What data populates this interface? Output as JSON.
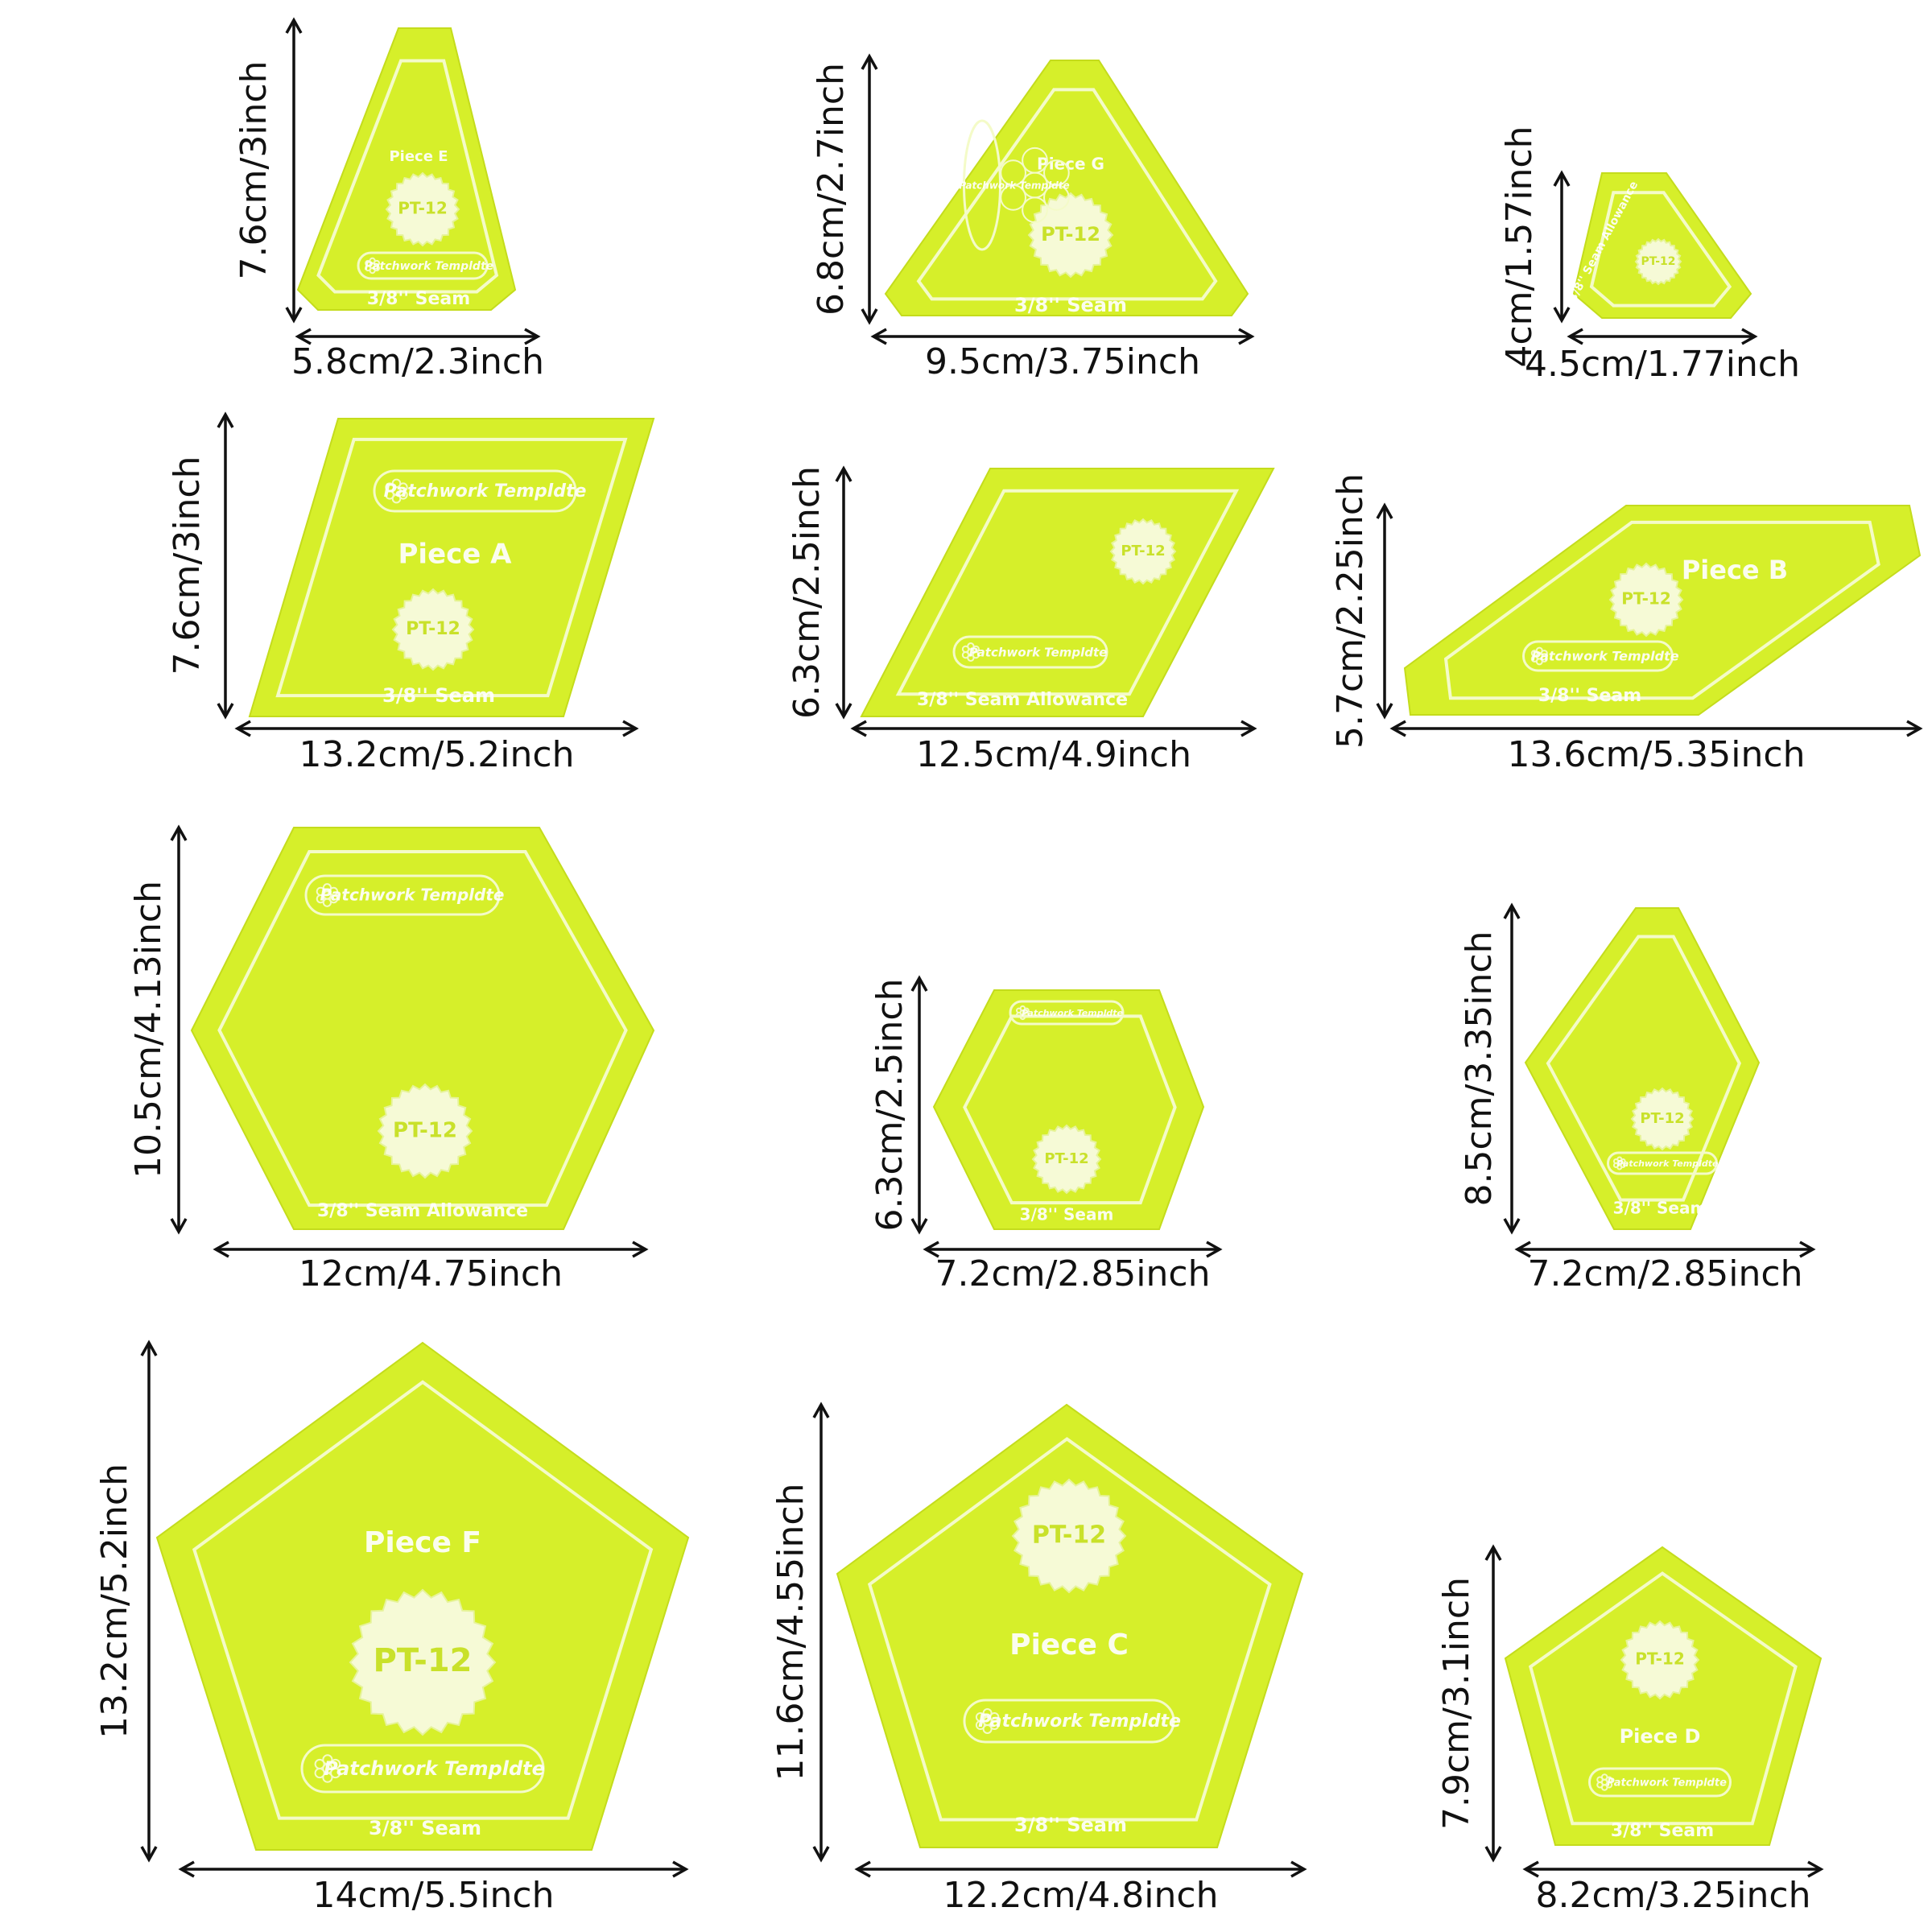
{
  "brand": "Patchwork Templdte",
  "code": "PT-12",
  "colors": {
    "acrylic": "#d6ef2a",
    "groove": "#f4fbc8",
    "seal": "#f6fad6",
    "ink": "#111111"
  },
  "pieces": [
    {
      "id": "E",
      "label": "Piece E",
      "seam": "3/8'' Seam",
      "width": "5.8cm/2.3inch",
      "height": "7.6cm/3inch"
    },
    {
      "id": "G",
      "label": "Piece G",
      "seam": "3/8'' Seam",
      "width": "9.5cm/3.75inch",
      "height": "6.8cm/2.7inch"
    },
    {
      "id": "small-tri",
      "label": "",
      "seam": "3/8'' Seam Allowance",
      "width": "4.5cm/1.77inch",
      "height": "4cm/1.57inch"
    },
    {
      "id": "A",
      "label": "Piece A",
      "seam": "3/8'' Seam",
      "width": "13.2cm/5.2inch",
      "height": "7.6cm/3inch"
    },
    {
      "id": "diamond",
      "label": "",
      "seam": "3/8'' Seam Allowance",
      "width": "12.5cm/4.9inch",
      "height": "6.3cm/2.5inch"
    },
    {
      "id": "B",
      "label": "Piece B",
      "seam": "3/8'' Seam",
      "width": "13.6cm/5.35inch",
      "height": "5.7cm/2.25inch"
    },
    {
      "id": "hex-large",
      "label": "",
      "seam": "3/8'' Seam Allowance",
      "width": "12cm/4.75inch",
      "height": "10.5cm/4.13inch"
    },
    {
      "id": "hex-small",
      "label": "",
      "seam": "3/8'' Seam",
      "width": "7.2cm/2.85inch",
      "height": "6.3cm/2.5inch"
    },
    {
      "id": "kite",
      "label": "",
      "seam": "3/8'' Seam",
      "width": "7.2cm/2.85inch",
      "height": "8.5cm/3.35inch"
    },
    {
      "id": "F",
      "label": "Piece F",
      "seam": "3/8'' Seam",
      "width": "14cm/5.5inch",
      "height": "13.2cm/5.2inch"
    },
    {
      "id": "C",
      "label": "Piece C",
      "seam": "3/8'' Seam",
      "width": "12.2cm/4.8inch",
      "height": "11.6cm/4.55inch"
    },
    {
      "id": "D",
      "label": "Piece D",
      "seam": "3/8'' Seam",
      "width": "8.2cm/3.25inch",
      "height": "7.9cm/3.1inch"
    }
  ]
}
